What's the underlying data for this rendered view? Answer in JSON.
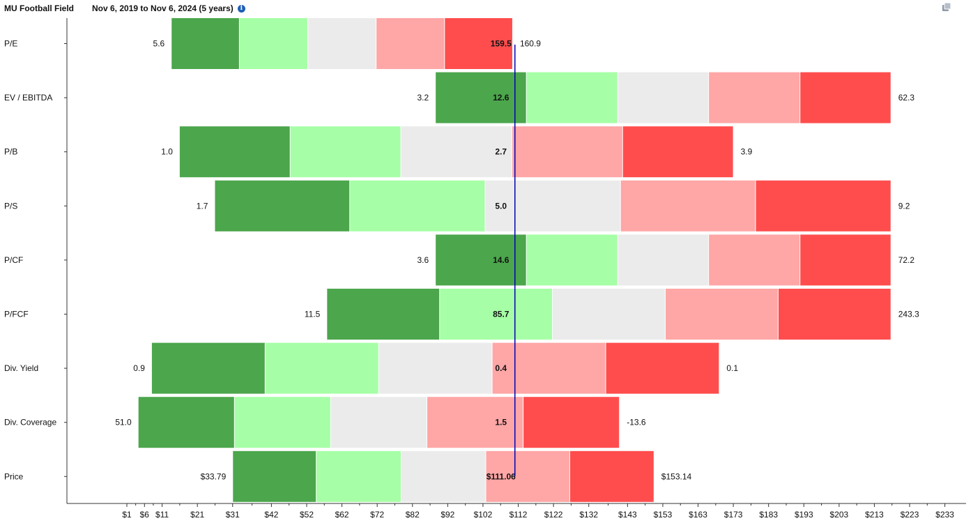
{
  "header": {
    "title": "MU Football Field",
    "date_range": "Nov 6, 2019 to Nov 6, 2024 (5 years)",
    "info_icon": "info-icon",
    "copy_icon": "copy-icon"
  },
  "colors": {
    "dark_green": "#4ca64c",
    "light_green": "#a6ffa6",
    "neutral": "#ebebeb",
    "light_red": "#ffa6a6",
    "dark_red": "#ff4d4d",
    "marker_line": "#0000b3",
    "axis": "#333333"
  },
  "chart_data": {
    "type": "football-field",
    "title": "MU Football Field",
    "subtitle": "Nov 6, 2019 to Nov 6, 2024 (5 years)",
    "x_axis": {
      "unit": "price ($)",
      "range": [
        -16,
        239
      ],
      "tick_values": [
        1,
        6,
        11,
        21,
        31,
        42,
        52,
        62,
        72,
        82,
        92,
        102,
        112,
        122,
        132,
        143,
        153,
        163,
        173,
        183,
        193,
        203,
        213,
        223,
        233
      ],
      "tick_labels": [
        "$1",
        "$6",
        "$11",
        "$21",
        "$31",
        "$42",
        "$52",
        "$62",
        "$72",
        "$82",
        "$92",
        "$102",
        "$112",
        "$122",
        "$132",
        "$143",
        "$153",
        "$163",
        "$173",
        "$183",
        "$193",
        "$203",
        "$213",
        "$223",
        "$233"
      ]
    },
    "current_price": 111.06,
    "segment_order": [
      "dark-green",
      "light-green",
      "neutral",
      "light-red",
      "dark-red"
    ],
    "rows": [
      {
        "label": "P/E",
        "low_label": "5.6",
        "current_label": "159.5",
        "high_label": "160.9",
        "bounds": [
          13.7,
          33.0,
          52.4,
          71.8,
          91.2,
          110.5
        ]
      },
      {
        "label": "EV / EBITDA",
        "low_label": "3.2",
        "current_label": "12.6",
        "high_label": "62.3",
        "bounds": [
          88.6,
          114.4,
          140.3,
          166.1,
          192.0,
          217.8
        ]
      },
      {
        "label": "P/B",
        "low_label": "1.0",
        "current_label": "2.7",
        "high_label": "3.9",
        "bounds": [
          16.0,
          47.4,
          78.8,
          110.3,
          141.7,
          173.1
        ]
      },
      {
        "label": "P/S",
        "low_label": "1.7",
        "current_label": "5.0",
        "high_label": "9.2",
        "bounds": [
          26.0,
          64.3,
          102.7,
          141.1,
          179.4,
          217.8
        ]
      },
      {
        "label": "P/CF",
        "low_label": "3.6",
        "current_label": "14.6",
        "high_label": "72.2",
        "bounds": [
          88.6,
          114.4,
          140.3,
          166.1,
          192.0,
          217.8
        ]
      },
      {
        "label": "P/FCF",
        "low_label": "11.5",
        "current_label": "85.7",
        "high_label": "243.3",
        "bounds": [
          57.8,
          89.8,
          121.8,
          153.8,
          185.8,
          217.8
        ]
      },
      {
        "label": "Div. Yield",
        "low_label": "0.9",
        "current_label": "0.4",
        "high_label": "0.1",
        "bounds": [
          8.1,
          40.3,
          72.5,
          104.7,
          136.9,
          169.1
        ]
      },
      {
        "label": "Div. Coverage",
        "low_label": "51.0",
        "current_label": "1.5",
        "high_label": "-13.6",
        "bounds": [
          4.3,
          31.6,
          58.9,
          86.2,
          113.5,
          140.8
        ]
      },
      {
        "label": "Price",
        "low_label": "$33.79",
        "current_label": "$111.06",
        "high_label": "$153.14",
        "bounds": [
          31.1,
          54.8,
          78.9,
          102.9,
          126.7,
          150.6
        ]
      }
    ]
  }
}
